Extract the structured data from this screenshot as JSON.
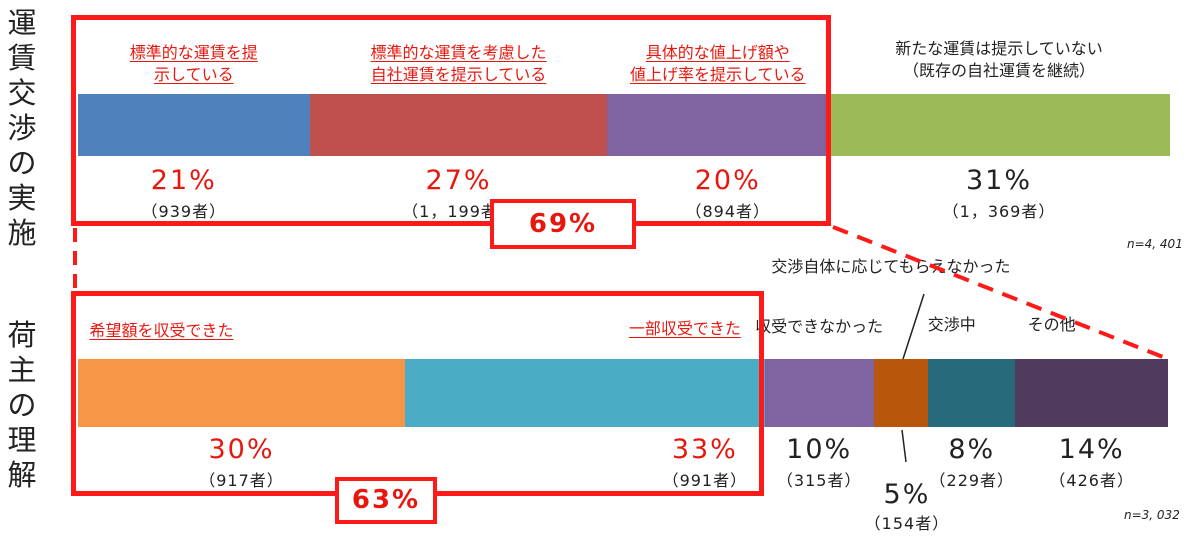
{
  "sidebar": {
    "top_label": [
      "運",
      "賃",
      "交",
      "渉",
      "の",
      "実",
      "施"
    ],
    "bottom_label": [
      "荷",
      "主",
      "の",
      "理",
      "解"
    ]
  },
  "chart_data": [
    {
      "type": "bar",
      "orientation": "horizontal-stacked-100",
      "sample_note": "n=4, 401",
      "total_highlight": "69%",
      "segments": [
        {
          "name": "標準的な運賃を提示している",
          "label_lines": [
            "標準的な運賃を提",
            "示している"
          ],
          "value": 21,
          "value_label": "21%",
          "count_label": "（939者）",
          "color": "#4f81bd",
          "label_style": "red"
        },
        {
          "name": "標準的な運賃を考慮した自社運賃を提示している",
          "label_lines": [
            "標準的な運賃を考慮した",
            "自社運賃を提示している"
          ],
          "value": 27,
          "value_label": "27%",
          "count_label": "（1，199者）",
          "color": "#c0504d",
          "label_style": "red"
        },
        {
          "name": "具体的な値上げ額や値上げ率を提示している",
          "label_lines": [
            "具体的な値上げ額や",
            "値上げ率を提示している"
          ],
          "value": 20,
          "value_label": "20%",
          "count_label": "（894者）",
          "color": "#8064a2",
          "label_style": "red"
        },
        {
          "name": "新たな運賃は提示していない（既存の自社運賃を継続）",
          "label_lines": [
            "新たな運賃は提示していない",
            "（既存の自社運賃を継続）"
          ],
          "value": 31,
          "value_label": "31%",
          "count_label": "（1，369者）",
          "color": "#9bbb59",
          "label_style": "black"
        }
      ]
    },
    {
      "type": "bar",
      "orientation": "horizontal-stacked-100",
      "sample_note": "n=3, 032",
      "total_highlight": "63%",
      "segments": [
        {
          "name": "希望額を収受できた",
          "label_lines": [
            "希望額を収受できた"
          ],
          "value": 30,
          "value_label": "30%",
          "count_label": "（917者）",
          "color": "#f79646",
          "label_style": "red"
        },
        {
          "name": "一部収受できた",
          "label_lines": [
            "一部収受できた"
          ],
          "value": 33,
          "value_label": "33%",
          "count_label": "（991者）",
          "color": "#4bacc6",
          "label_style": "red"
        },
        {
          "name": "収受できなかった",
          "label_lines": [
            "収受できなかった"
          ],
          "value": 10,
          "value_label": "10%",
          "count_label": "（315者）",
          "color": "#8064a2",
          "label_style": "black"
        },
        {
          "name": "交渉自体に応じてもらえなかった",
          "label_lines": [
            "交渉自体に応じてもらえなかった"
          ],
          "value": 5,
          "value_label": "5%",
          "count_label": "（154者）",
          "color": "#b8560b",
          "label_style": "black"
        },
        {
          "name": "交渉中",
          "label_lines": [
            "交渉中"
          ],
          "value": 8,
          "value_label": "8%",
          "count_label": "（229者）",
          "color": "#276a7c",
          "label_style": "black"
        },
        {
          "name": "その他",
          "label_lines": [
            "その他"
          ],
          "value": 14,
          "value_label": "14%",
          "count_label": "（426者）",
          "color": "#4f3b5e",
          "label_style": "black"
        }
      ]
    }
  ]
}
